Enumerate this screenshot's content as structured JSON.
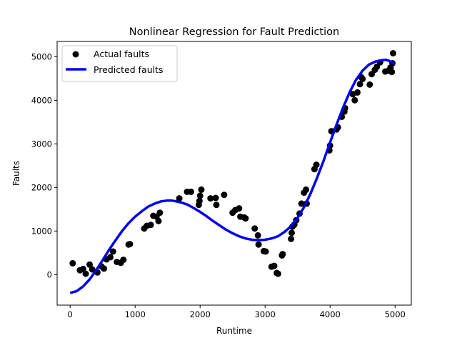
{
  "chart_data": {
    "type": "scatter",
    "title": "Nonlinear Regression for Fault Prediction",
    "xlabel": "Runtime",
    "ylabel": "Faults",
    "xlim": [
      -200,
      5250
    ],
    "ylim": [
      -700,
      5350
    ],
    "xticks": [
      0,
      1000,
      2000,
      3000,
      4000,
      5000
    ],
    "yticks": [
      0,
      1000,
      2000,
      3000,
      4000,
      5000
    ],
    "grid": false,
    "legend_position": "top-left",
    "series": [
      {
        "name": "Actual faults",
        "kind": "scatter",
        "color": "#000000",
        "points": [
          [
            40,
            260
          ],
          [
            150,
            100
          ],
          [
            200,
            130
          ],
          [
            240,
            20
          ],
          [
            300,
            230
          ],
          [
            340,
            120
          ],
          [
            420,
            50
          ],
          [
            480,
            190
          ],
          [
            520,
            140
          ],
          [
            560,
            350
          ],
          [
            620,
            400
          ],
          [
            660,
            530
          ],
          [
            720,
            290
          ],
          [
            780,
            270
          ],
          [
            820,
            340
          ],
          [
            900,
            690
          ],
          [
            920,
            700
          ],
          [
            1140,
            1060
          ],
          [
            1180,
            1120
          ],
          [
            1240,
            1140
          ],
          [
            1280,
            1350
          ],
          [
            1330,
            1330
          ],
          [
            1360,
            1230
          ],
          [
            1380,
            1420
          ],
          [
            1680,
            1750
          ],
          [
            1800,
            1900
          ],
          [
            1860,
            1900
          ],
          [
            1980,
            1600
          ],
          [
            1990,
            1690
          ],
          [
            2000,
            1810
          ],
          [
            2020,
            1950
          ],
          [
            2160,
            1750
          ],
          [
            2240,
            1760
          ],
          [
            2250,
            1600
          ],
          [
            2370,
            1830
          ],
          [
            2500,
            1420
          ],
          [
            2540,
            1480
          ],
          [
            2600,
            1520
          ],
          [
            2620,
            1330
          ],
          [
            2680,
            1310
          ],
          [
            2700,
            1290
          ],
          [
            2840,
            1060
          ],
          [
            2890,
            900
          ],
          [
            2900,
            690
          ],
          [
            2980,
            540
          ],
          [
            3010,
            530
          ],
          [
            3100,
            180
          ],
          [
            3140,
            200
          ],
          [
            3180,
            40
          ],
          [
            3200,
            20
          ],
          [
            3260,
            440
          ],
          [
            3270,
            470
          ],
          [
            3400,
            820
          ],
          [
            3410,
            960
          ],
          [
            3420,
            1100
          ],
          [
            3450,
            1150
          ],
          [
            3480,
            1250
          ],
          [
            3530,
            1400
          ],
          [
            3560,
            1630
          ],
          [
            3600,
            1880
          ],
          [
            3630,
            1950
          ],
          [
            3640,
            1630
          ],
          [
            3760,
            2420
          ],
          [
            3790,
            2520
          ],
          [
            3990,
            2850
          ],
          [
            4000,
            2960
          ],
          [
            4020,
            3290
          ],
          [
            4100,
            3330
          ],
          [
            4120,
            3380
          ],
          [
            4180,
            3620
          ],
          [
            4220,
            3740
          ],
          [
            4230,
            3820
          ],
          [
            4350,
            4140
          ],
          [
            4380,
            4000
          ],
          [
            4420,
            4180
          ],
          [
            4460,
            4370
          ],
          [
            4480,
            4530
          ],
          [
            4500,
            4490
          ],
          [
            4610,
            4360
          ],
          [
            4640,
            4600
          ],
          [
            4690,
            4700
          ],
          [
            4720,
            4770
          ],
          [
            4770,
            4870
          ],
          [
            4850,
            4660
          ],
          [
            4900,
            4680
          ],
          [
            4930,
            4750
          ],
          [
            4950,
            4650
          ],
          [
            4960,
            4850
          ],
          [
            4970,
            5080
          ]
        ]
      },
      {
        "name": "Predicted faults",
        "kind": "line",
        "color": "#0000ee",
        "points": [
          [
            0,
            -420
          ],
          [
            100,
            -380
          ],
          [
            200,
            -270
          ],
          [
            300,
            -110
          ],
          [
            400,
            100
          ],
          [
            500,
            330
          ],
          [
            600,
            570
          ],
          [
            700,
            790
          ],
          [
            800,
            1000
          ],
          [
            900,
            1180
          ],
          [
            1000,
            1330
          ],
          [
            1100,
            1450
          ],
          [
            1200,
            1560
          ],
          [
            1300,
            1630
          ],
          [
            1400,
            1680
          ],
          [
            1500,
            1700
          ],
          [
            1550,
            1700
          ],
          [
            1600,
            1690
          ],
          [
            1700,
            1660
          ],
          [
            1800,
            1610
          ],
          [
            1900,
            1530
          ],
          [
            2000,
            1440
          ],
          [
            2100,
            1340
          ],
          [
            2200,
            1230
          ],
          [
            2300,
            1130
          ],
          [
            2400,
            1030
          ],
          [
            2500,
            950
          ],
          [
            2600,
            880
          ],
          [
            2700,
            830
          ],
          [
            2800,
            800
          ],
          [
            2900,
            790
          ],
          [
            3000,
            800
          ],
          [
            3100,
            830
          ],
          [
            3200,
            880
          ],
          [
            3300,
            980
          ],
          [
            3400,
            1110
          ],
          [
            3500,
            1300
          ],
          [
            3600,
            1550
          ],
          [
            3700,
            1860
          ],
          [
            3800,
            2220
          ],
          [
            3900,
            2610
          ],
          [
            4000,
            3030
          ],
          [
            4100,
            3440
          ],
          [
            4200,
            3830
          ],
          [
            4300,
            4180
          ],
          [
            4400,
            4470
          ],
          [
            4500,
            4680
          ],
          [
            4600,
            4820
          ],
          [
            4700,
            4890
          ],
          [
            4800,
            4920
          ],
          [
            4860,
            4930
          ],
          [
            4900,
            4910
          ],
          [
            4950,
            4870
          ],
          [
            5000,
            4830
          ]
        ]
      }
    ]
  }
}
